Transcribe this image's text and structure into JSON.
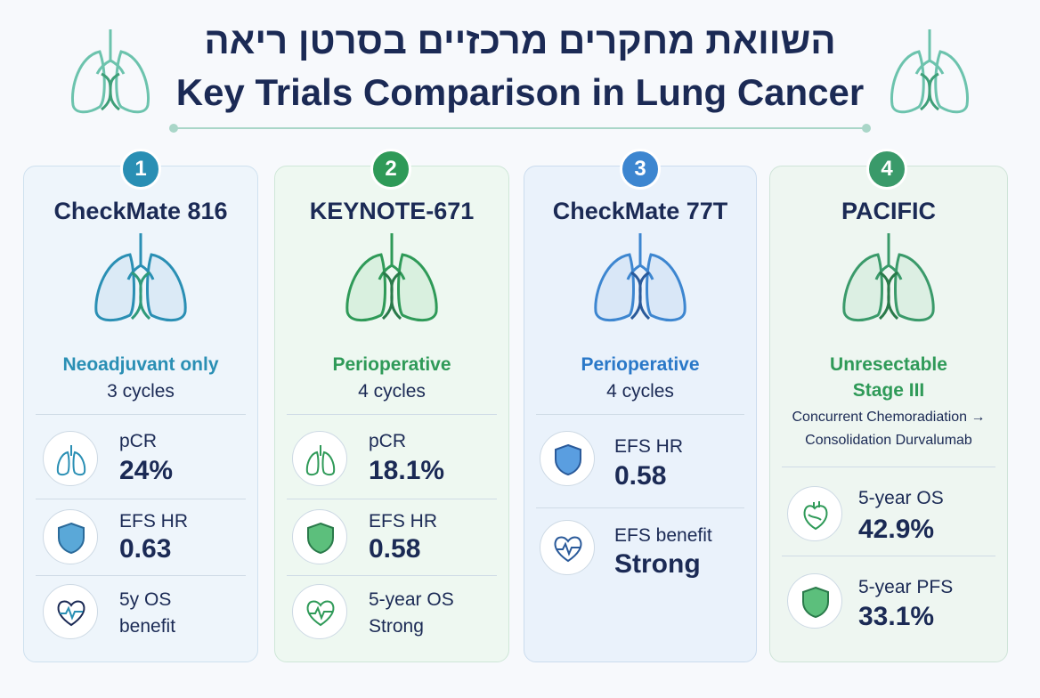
{
  "header": {
    "title_he": "השוואת מחקרים מרכזיים בסרטן ריאה",
    "title_en": "Key Trials Comparison in Lung Cancer"
  },
  "colors": {
    "blue": "#2a8fb4",
    "green": "#2f9a58",
    "navy": "#1b2a55",
    "blue_bg": "#eaf4fb",
    "green_bg": "#ebf7ef"
  },
  "cards": [
    {
      "number": "1",
      "title": "CheckMate 816",
      "subtitle": "Neoadjuvant only",
      "detail": "3 cycles",
      "metrics": [
        {
          "icon": "lungs-icon",
          "label": "pCR",
          "value": "24%"
        },
        {
          "icon": "shield-icon",
          "label": "EFS HR",
          "value": "0.63"
        },
        {
          "icon": "heart-pulse-icon",
          "label": "5y OS",
          "value": "benefit"
        }
      ]
    },
    {
      "number": "2",
      "title": "KEYNOTE-671",
      "subtitle": "Perioperative",
      "detail": "4 cycles",
      "metrics": [
        {
          "icon": "lungs-icon",
          "label": "pCR",
          "value": "18.1%"
        },
        {
          "icon": "shield-icon",
          "label": "EFS HR",
          "value": "0.58"
        },
        {
          "icon": "heart-pulse-icon",
          "label": "5-year OS",
          "value": "Strong"
        }
      ]
    },
    {
      "number": "3",
      "title": "CheckMate 77T",
      "subtitle": "Perioperative",
      "detail": "4 cycles",
      "metrics": [
        {
          "icon": "shield-icon",
          "label": "EFS HR",
          "value": "0.58"
        },
        {
          "icon": "heart-pulse-icon",
          "label": "EFS benefit",
          "value": "Strong"
        }
      ]
    },
    {
      "number": "4",
      "title": "PACIFIC",
      "subtitle_line1": "Unresectable",
      "subtitle_line2": "Stage III",
      "note_line1": "Concurrent Chemoradiation →",
      "note_line2": "Consolidation Durvalumab",
      "metrics": [
        {
          "icon": "heart-icon",
          "label": "5-year OS",
          "value": "42.9%"
        },
        {
          "icon": "shield-icon",
          "label": "5-year PFS",
          "value": "33.1%"
        }
      ]
    }
  ]
}
